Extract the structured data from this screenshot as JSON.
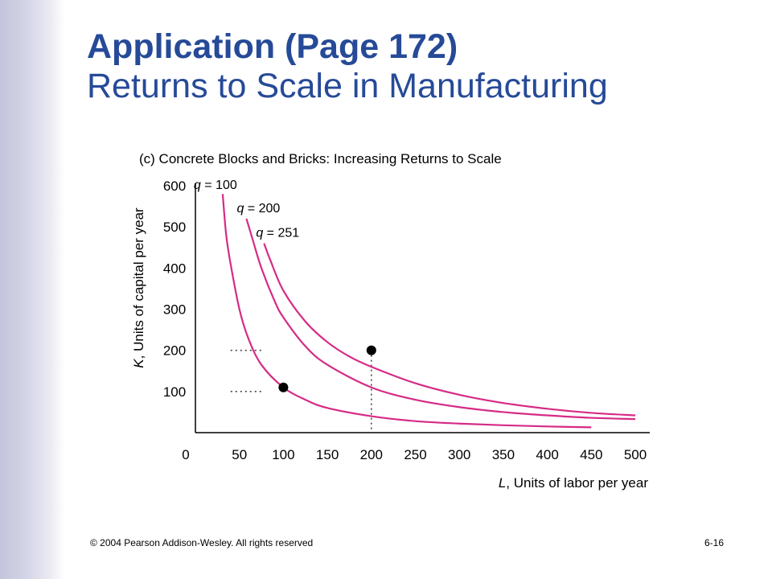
{
  "header": {
    "title_line1": "Application (Page 172)",
    "title_line2": "Returns to Scale in Manufacturing"
  },
  "panel_caption": "(c) Concrete Blocks and Bricks: Increasing Returns to Scale",
  "footer": {
    "copyright": "© 2004 Pearson Addison-Wesley. All rights reserved",
    "slide_number": "6-16"
  },
  "colors": {
    "title": "#264a98",
    "curve": "#d62b86",
    "points": "#000000",
    "side_band": "#c3c3dc"
  },
  "chart_data": {
    "type": "line",
    "xlabel_var": "L",
    "xlabel_rest": ", Units of labor per year",
    "ylabel_var": "K",
    "ylabel_rest": ", Units of capital per year",
    "xlim": [
      0,
      500
    ],
    "ylim": [
      0,
      600
    ],
    "x_ticks": [
      0,
      50,
      100,
      150,
      200,
      250,
      300,
      350,
      400,
      450,
      500
    ],
    "y_ticks": [
      100,
      200,
      300,
      400,
      500,
      600
    ],
    "origin_label": "0",
    "grid": false,
    "series": [
      {
        "name_var": "q",
        "name_rest": " = 100",
        "points": [
          [
            31,
            580
          ],
          [
            35,
            480
          ],
          [
            40,
            410
          ],
          [
            50,
            300
          ],
          [
            60,
            230
          ],
          [
            75,
            165
          ],
          [
            100,
            110
          ],
          [
            125,
            80
          ],
          [
            150,
            60
          ],
          [
            200,
            40
          ],
          [
            250,
            28
          ],
          [
            300,
            22
          ],
          [
            350,
            18
          ],
          [
            400,
            15
          ],
          [
            450,
            13
          ]
        ]
      },
      {
        "name_var": "q",
        "name_rest": " = 200",
        "points": [
          [
            58,
            520
          ],
          [
            65,
            470
          ],
          [
            75,
            400
          ],
          [
            90,
            320
          ],
          [
            100,
            280
          ],
          [
            125,
            210
          ],
          [
            150,
            165
          ],
          [
            200,
            110
          ],
          [
            250,
            80
          ],
          [
            300,
            62
          ],
          [
            350,
            50
          ],
          [
            400,
            42
          ],
          [
            450,
            36
          ],
          [
            500,
            33
          ]
        ]
      },
      {
        "name_var": "q",
        "name_rest": " = 251",
        "points": [
          [
            78,
            460
          ],
          [
            85,
            420
          ],
          [
            100,
            345
          ],
          [
            125,
            270
          ],
          [
            150,
            220
          ],
          [
            175,
            185
          ],
          [
            200,
            160
          ],
          [
            250,
            120
          ],
          [
            300,
            92
          ],
          [
            350,
            72
          ],
          [
            400,
            58
          ],
          [
            450,
            48
          ],
          [
            500,
            42
          ]
        ]
      }
    ],
    "highlighted_points": [
      [
        100,
        110
      ],
      [
        200,
        200
      ]
    ],
    "guide_lines": [
      {
        "from": [
          200,
          200
        ],
        "to": [
          200,
          0
        ]
      },
      {
        "from": [
          40,
          200
        ],
        "to": [
          75,
          200
        ]
      },
      {
        "from": [
          40,
          100
        ],
        "to": [
          75,
          100
        ]
      }
    ]
  }
}
